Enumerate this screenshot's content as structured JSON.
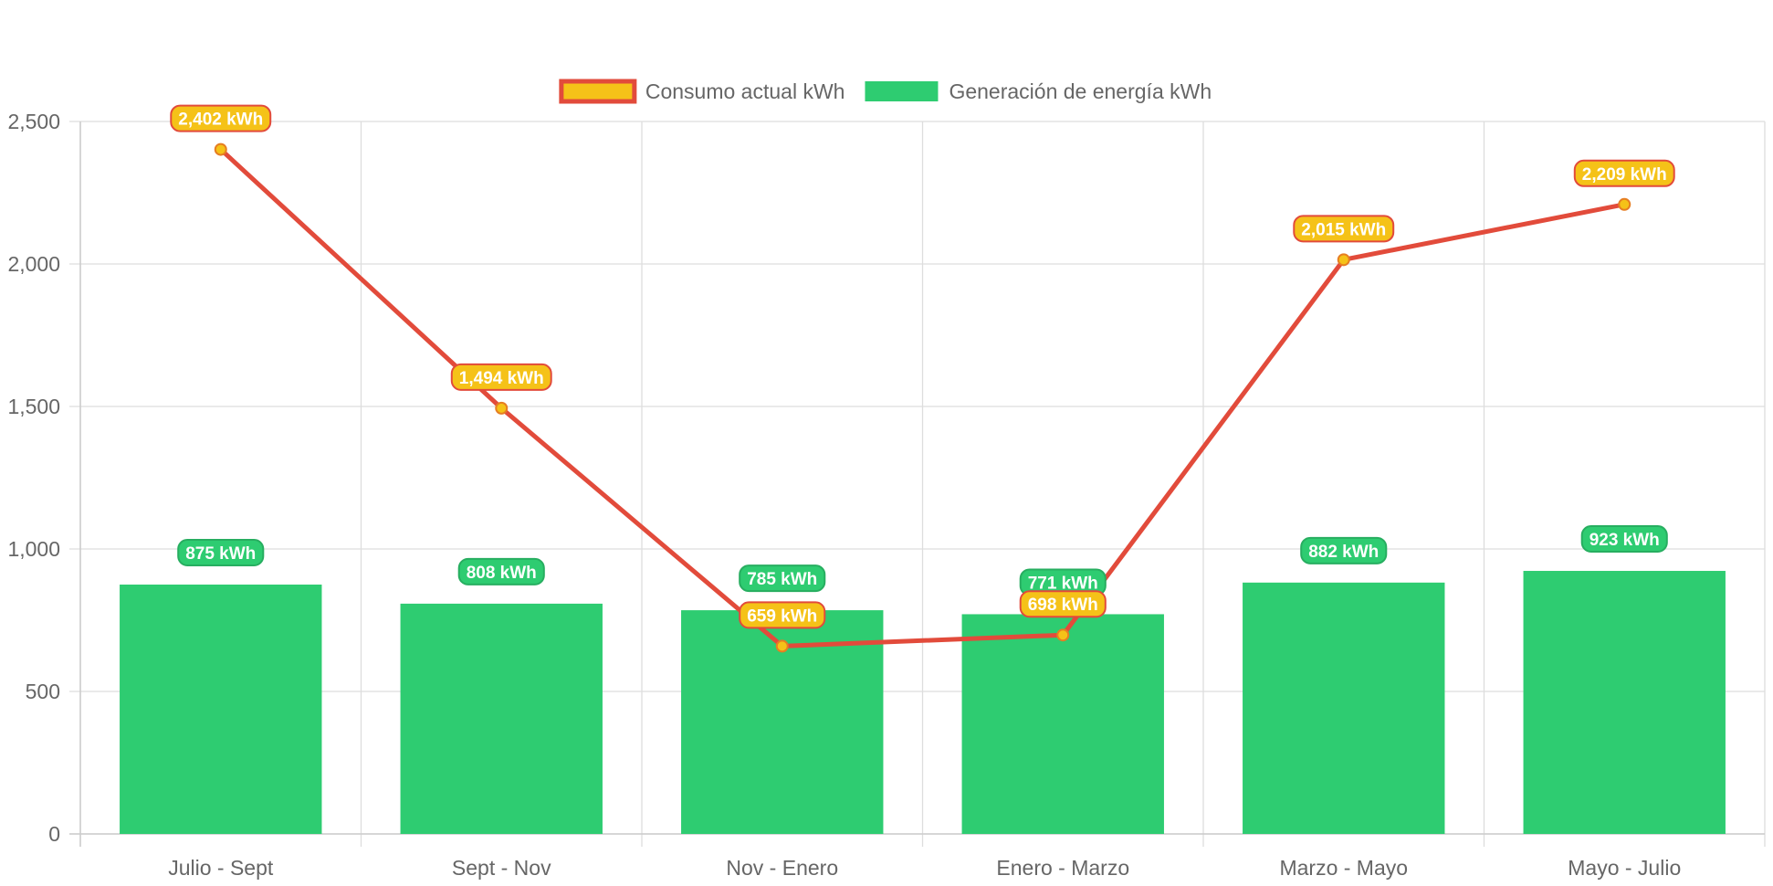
{
  "chart_data": {
    "type": "bar",
    "categories": [
      "Julio - Sept",
      "Sept - Nov",
      "Nov - Enero",
      "Enero - Marzo",
      "Marzo - Mayo",
      "Mayo - Julio"
    ],
    "series": [
      {
        "name": "Consumo actual kWh",
        "render": "line",
        "values": [
          2402,
          1494,
          659,
          698,
          2015,
          2209
        ],
        "labels": [
          "2,402 kWh",
          "1,494 kWh",
          "659 kWh",
          "698 kWh",
          "2,015 kWh",
          "2,209 kWh"
        ],
        "line_color": "#e24b3b",
        "fill_color": "#f5c218"
      },
      {
        "name": "Generación de energía kWh",
        "render": "bar",
        "values": [
          875,
          808,
          785,
          771,
          882,
          923
        ],
        "labels": [
          "875 kWh",
          "808 kWh",
          "785 kWh",
          "771 kWh",
          "882 kWh",
          "923 kWh"
        ],
        "fill_color": "#2ecc71",
        "label_border_color": "#27ae60"
      }
    ],
    "title": "",
    "xlabel": "",
    "ylabel": "",
    "ylim": [
      0,
      2500
    ],
    "yticks": [
      0,
      500,
      1000,
      1500,
      2000,
      2500
    ],
    "ytick_labels": [
      "0",
      "500",
      "1,000",
      "1,500",
      "2,000",
      "2,500"
    ],
    "grid": true,
    "legend": "top-center",
    "grid_color": "#dddddd",
    "axis_text_color": "#666666"
  }
}
